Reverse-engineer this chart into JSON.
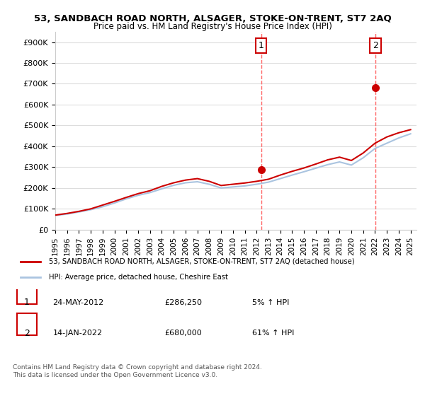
{
  "title": "53, SANDBACH ROAD NORTH, ALSAGER, STOKE-ON-TRENT, ST7 2AQ",
  "subtitle": "Price paid vs. HM Land Registry's House Price Index (HPI)",
  "ylabel_ticks": [
    "£0",
    "£100K",
    "£200K",
    "£300K",
    "£400K",
    "£500K",
    "£600K",
    "£700K",
    "£800K",
    "£900K"
  ],
  "ylabel_values": [
    0,
    100000,
    200000,
    300000,
    400000,
    500000,
    600000,
    700000,
    800000,
    900000
  ],
  "ylim": [
    0,
    950000
  ],
  "xlim_start": 1995.0,
  "xlim_end": 2025.5,
  "xticks": [
    1995,
    1996,
    1997,
    1998,
    1999,
    2000,
    2001,
    2002,
    2003,
    2004,
    2005,
    2006,
    2007,
    2008,
    2009,
    2010,
    2011,
    2012,
    2013,
    2014,
    2015,
    2016,
    2017,
    2018,
    2019,
    2020,
    2021,
    2022,
    2023,
    2024,
    2025
  ],
  "hpi_line_color": "#aac4e0",
  "price_line_color": "#cc0000",
  "vline1_x": 2012.39,
  "vline2_x": 2022.04,
  "vline_color": "#ff6666",
  "marker1_x": 2012.39,
  "marker1_y": 286250,
  "marker2_x": 2022.04,
  "marker2_y": 680000,
  "marker_color": "#cc0000",
  "legend_property_label": "53, SANDBACH ROAD NORTH, ALSAGER, STOKE-ON-TRENT, ST7 2AQ (detached house)",
  "legend_hpi_label": "HPI: Average price, detached house, Cheshire East",
  "transaction1_num": "1",
  "transaction1_date": "24-MAY-2012",
  "transaction1_price": "£286,250",
  "transaction1_hpi": "5% ↑ HPI",
  "transaction2_num": "2",
  "transaction2_date": "14-JAN-2022",
  "transaction2_price": "£680,000",
  "transaction2_hpi": "61% ↑ HPI",
  "footer": "Contains HM Land Registry data © Crown copyright and database right 2024.\nThis data is licensed under the Open Government Licence v3.0.",
  "background_color": "#ffffff",
  "grid_color": "#dddddd",
  "hpi_years": [
    1995,
    1996,
    1997,
    1998,
    1999,
    2000,
    2001,
    2002,
    2003,
    2004,
    2005,
    2006,
    2007,
    2008,
    2009,
    2010,
    2011,
    2012,
    2013,
    2014,
    2015,
    2016,
    2017,
    2018,
    2019,
    2020,
    2021,
    2022,
    2023,
    2024,
    2025
  ],
  "hpi_values": [
    68000,
    75000,
    85000,
    96000,
    110000,
    128000,
    148000,
    165000,
    178000,
    196000,
    213000,
    225000,
    230000,
    218000,
    200000,
    205000,
    210000,
    218000,
    228000,
    245000,
    262000,
    278000,
    295000,
    312000,
    325000,
    310000,
    345000,
    390000,
    415000,
    440000,
    460000
  ],
  "price_paid_years": [
    1995,
    1996,
    1997,
    1998,
    1999,
    2000,
    2001,
    2002,
    2003,
    2004,
    2005,
    2006,
    2007,
    2008,
    2009,
    2010,
    2011,
    2012,
    2013,
    2014,
    2015,
    2016,
    2017,
    2018,
    2019,
    2020,
    2021,
    2022,
    2023,
    2024,
    2025
  ],
  "price_paid_values": [
    70000,
    78000,
    88000,
    100000,
    118000,
    136000,
    155000,
    173000,
    187000,
    208000,
    225000,
    238000,
    245000,
    232000,
    212000,
    218000,
    224000,
    232000,
    242000,
    262000,
    280000,
    296000,
    315000,
    335000,
    348000,
    332000,
    368000,
    415000,
    445000,
    465000,
    480000
  ]
}
